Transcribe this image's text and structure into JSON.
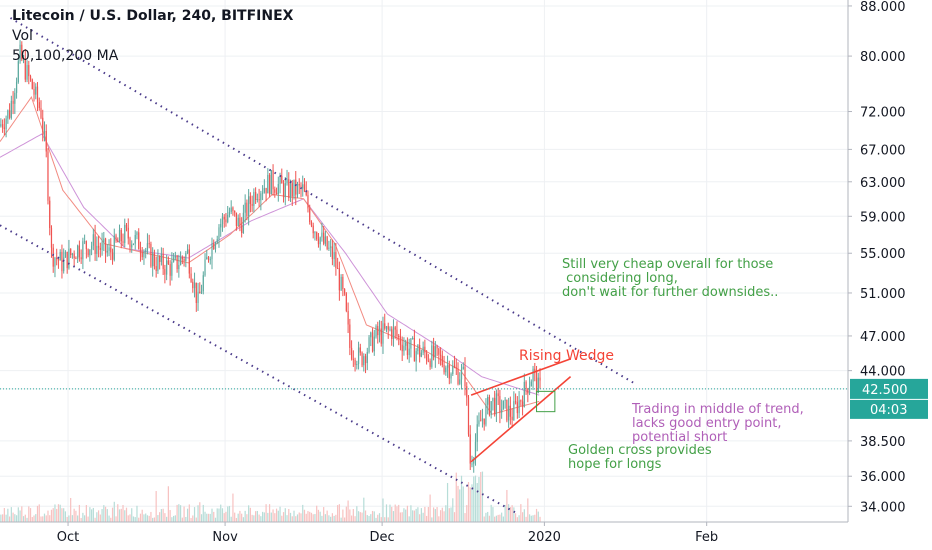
{
  "legend": {
    "title": "Litecoin / U.S. Dollar, 240, BITFINEX",
    "vol": "Vol",
    "ma": "50,100,200 MA"
  },
  "colors": {
    "up": "#5ca99f",
    "down": "#ef5350",
    "ma_fast": "#f28b82",
    "ma_slow": "#ce93d8",
    "trendline": "#4a3a8a",
    "wedge": "#f44336",
    "green_note": "#43a047",
    "purple_note": "#b05fb8",
    "last_price_bg": "#26a69a",
    "countdown_bg": "#26a69a"
  },
  "annotations": {
    "rising_wedge": "Rising Wedge",
    "cheap_note": "Still very cheap overall for those\n considering long,\ndon't wait for further downsides..",
    "trend_note": "Trading in middle of trend,\nlacks good entry point,\npotential short",
    "golden_note": "Golden cross provides\nhope for longs"
  },
  "last_price": "42.500",
  "countdown": "04:03",
  "chart_data": {
    "type": "candlestick",
    "title": "Litecoin / U.S. Dollar, 240, BITFINEX",
    "y_scale": "log",
    "ylim": [
      33.0,
      89.0
    ],
    "xlim_days": [
      0,
      162
    ],
    "y_ticks": [
      "34.000",
      "36.000",
      "38.500",
      "42.500",
      "44.000",
      "47.000",
      "51.000",
      "55.000",
      "59.000",
      "63.000",
      "67.000",
      "72.000",
      "80.000",
      "88.000"
    ],
    "x_ticks": [
      {
        "label": "Oct",
        "day": 13
      },
      {
        "label": "Nov",
        "day": 43
      },
      {
        "label": "Dec",
        "day": 73
      },
      {
        "label": "2020",
        "day": 104
      },
      {
        "label": "Feb",
        "day": 135
      }
    ],
    "price_path": [
      {
        "day": 0,
        "price": 70.0
      },
      {
        "day": 2,
        "price": 72.0
      },
      {
        "day": 4,
        "price": 80.0
      },
      {
        "day": 6,
        "price": 76.0
      },
      {
        "day": 8,
        "price": 72.0
      },
      {
        "day": 9,
        "price": 66.0
      },
      {
        "day": 10,
        "price": 55.0
      },
      {
        "day": 12,
        "price": 54.0
      },
      {
        "day": 15,
        "price": 55.5
      },
      {
        "day": 18,
        "price": 56.0
      },
      {
        "day": 21,
        "price": 55.0
      },
      {
        "day": 24,
        "price": 57.0
      },
      {
        "day": 27,
        "price": 56.0
      },
      {
        "day": 30,
        "price": 54.0
      },
      {
        "day": 33,
        "price": 53.5
      },
      {
        "day": 36,
        "price": 55.0
      },
      {
        "day": 38,
        "price": 50.0
      },
      {
        "day": 40,
        "price": 55.0
      },
      {
        "day": 42,
        "price": 58.0
      },
      {
        "day": 44,
        "price": 59.5
      },
      {
        "day": 46,
        "price": 58.0
      },
      {
        "day": 49,
        "price": 62.0
      },
      {
        "day": 52,
        "price": 63.0
      },
      {
        "day": 55,
        "price": 62.0
      },
      {
        "day": 58,
        "price": 62.0
      },
      {
        "day": 60,
        "price": 58.0
      },
      {
        "day": 62,
        "price": 56.0
      },
      {
        "day": 64,
        "price": 54.5
      },
      {
        "day": 66,
        "price": 50.0
      },
      {
        "day": 67,
        "price": 46.0
      },
      {
        "day": 69,
        "price": 45.0
      },
      {
        "day": 72,
        "price": 47.0
      },
      {
        "day": 75,
        "price": 47.5
      },
      {
        "day": 78,
        "price": 46.0
      },
      {
        "day": 81,
        "price": 45.5
      },
      {
        "day": 84,
        "price": 45.0
      },
      {
        "day": 87,
        "price": 44.0
      },
      {
        "day": 89,
        "price": 43.5
      },
      {
        "day": 90,
        "price": 37.0
      },
      {
        "day": 92,
        "price": 40.0
      },
      {
        "day": 94,
        "price": 41.5
      },
      {
        "day": 96,
        "price": 41.0
      },
      {
        "day": 98,
        "price": 40.5
      },
      {
        "day": 100,
        "price": 42.0
      },
      {
        "day": 102,
        "price": 43.8
      },
      {
        "day": 103,
        "price": 42.5
      }
    ],
    "ma_fast_path": [
      {
        "day": 0,
        "price": 68.0
      },
      {
        "day": 6,
        "price": 74.0
      },
      {
        "day": 12,
        "price": 62.0
      },
      {
        "day": 20,
        "price": 56.0
      },
      {
        "day": 36,
        "price": 54.0
      },
      {
        "day": 44,
        "price": 57.0
      },
      {
        "day": 52,
        "price": 61.5
      },
      {
        "day": 58,
        "price": 61.0
      },
      {
        "day": 64,
        "price": 56.0
      },
      {
        "day": 70,
        "price": 48.0
      },
      {
        "day": 80,
        "price": 46.0
      },
      {
        "day": 88,
        "price": 44.0
      },
      {
        "day": 94,
        "price": 40.5
      },
      {
        "day": 103,
        "price": 41.5
      }
    ],
    "ma_slow_path": [
      {
        "day": 0,
        "price": 66.0
      },
      {
        "day": 8,
        "price": 69.0
      },
      {
        "day": 16,
        "price": 60.0
      },
      {
        "day": 24,
        "price": 55.5
      },
      {
        "day": 36,
        "price": 54.5
      },
      {
        "day": 48,
        "price": 58.5
      },
      {
        "day": 58,
        "price": 61.0
      },
      {
        "day": 66,
        "price": 55.0
      },
      {
        "day": 74,
        "price": 49.0
      },
      {
        "day": 84,
        "price": 46.0
      },
      {
        "day": 92,
        "price": 43.5
      },
      {
        "day": 103,
        "price": 42.0
      }
    ],
    "upper_trendline": [
      {
        "day": 2,
        "price": 86.0
      },
      {
        "day": 121,
        "price": 43.0
      }
    ],
    "lower_trendline": [
      {
        "day": 0,
        "price": 58.0
      },
      {
        "day": 99,
        "price": 33.5
      }
    ],
    "wedge_upper": [
      {
        "day": 90,
        "price": 42.0
      },
      {
        "day": 109,
        "price": 45.0
      }
    ],
    "wedge_lower": [
      {
        "day": 90,
        "price": 37.0
      },
      {
        "day": 109,
        "price": 43.5
      }
    ],
    "last_price": 42.5
  }
}
